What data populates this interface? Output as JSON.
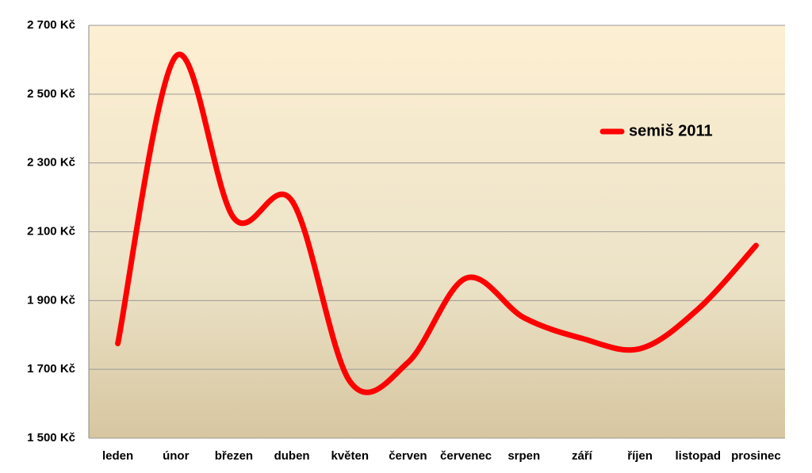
{
  "chart_data": {
    "type": "line",
    "smooth": true,
    "categories": [
      "leden",
      "únor",
      "březen",
      "duben",
      "květen",
      "červen",
      "červenec",
      "srpen",
      "září",
      "říjen",
      "listopad",
      "prosinec"
    ],
    "series": [
      {
        "name": "semiš 2011",
        "color": "#ff0000",
        "values": [
          1775,
          2610,
          2140,
          2190,
          1665,
          1720,
          1965,
          1850,
          1790,
          1760,
          1875,
          2060
        ]
      }
    ],
    "ylim": [
      1500,
      2700
    ],
    "yticks": [
      {
        "value": 1500,
        "label": "1 500 Kč"
      },
      {
        "value": 1700,
        "label": "1 700 Kč"
      },
      {
        "value": 1900,
        "label": "1 900 Kč"
      },
      {
        "value": 2100,
        "label": "2 100 Kč"
      },
      {
        "value": 2300,
        "label": "2 300 Kč"
      },
      {
        "value": 2500,
        "label": "2 500 Kč"
      },
      {
        "value": 2700,
        "label": "2 700 Kč"
      }
    ],
    "grid": true,
    "legend": "right"
  }
}
